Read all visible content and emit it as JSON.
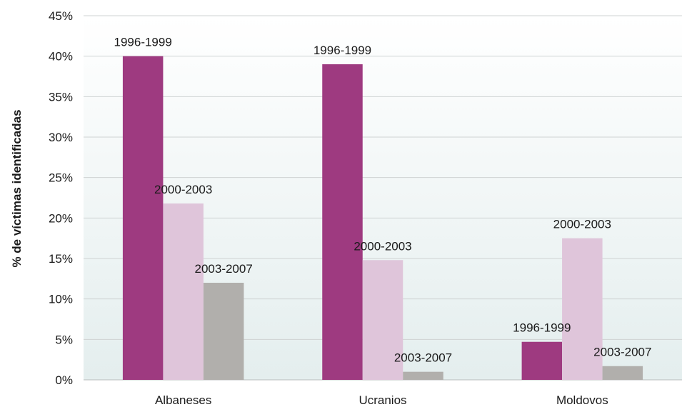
{
  "chart_data": {
    "type": "bar",
    "title": "",
    "xlabel": "",
    "ylabel": "% de víctimas identificadas",
    "ylim": [
      0,
      45
    ],
    "yticks": [
      "0%",
      "5%",
      "10%",
      "15%",
      "20%",
      "25%",
      "30%",
      "35%",
      "40%",
      "45%"
    ],
    "categories": [
      "Albaneses",
      "Ucranios",
      "Moldovos"
    ],
    "series": [
      {
        "name": "1996-1999",
        "color": "#9e3a80",
        "values": [
          40,
          39,
          4.7
        ]
      },
      {
        "name": "2000-2003",
        "color": "#dfc5da",
        "values": [
          21.8,
          14.8,
          17.5
        ]
      },
      {
        "name": "2003-2007",
        "color": "#b1afac",
        "values": [
          12,
          1,
          1.7
        ]
      }
    ],
    "grid": true,
    "background": [
      "#ffffff",
      "#e4eeee"
    ],
    "legend": "none (series names shown as data labels above bars)"
  }
}
